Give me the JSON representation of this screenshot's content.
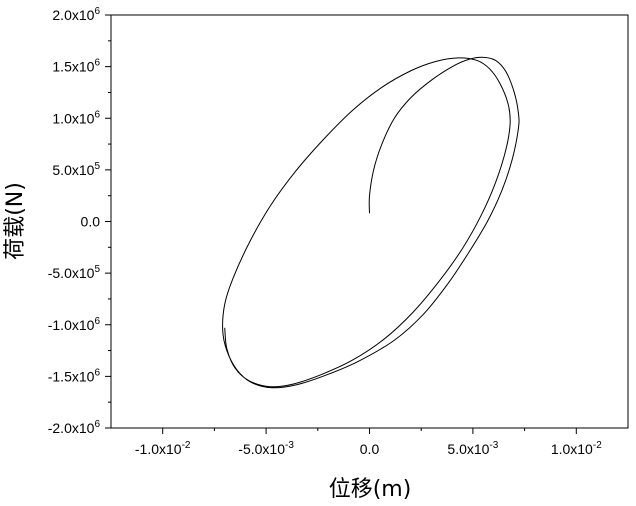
{
  "chart_data": {
    "type": "line",
    "xlabel": "位移(m)",
    "ylabel": "荷载(N)",
    "xlim": [
      -0.0125,
      0.0125
    ],
    "ylim": [
      -2000000,
      2000000
    ],
    "grid": false,
    "x_ticks": [
      {
        "value": -0.01,
        "mantissa": "-1.0x10",
        "exp": "-2"
      },
      {
        "value": -0.005,
        "mantissa": "-5.0x10",
        "exp": "-3"
      },
      {
        "value": 0,
        "mantissa": "0.0",
        "exp": ""
      },
      {
        "value": 0.005,
        "mantissa": "5.0x10",
        "exp": "-3"
      },
      {
        "value": 0.01,
        "mantissa": "1.0x10",
        "exp": "-2"
      }
    ],
    "y_ticks": [
      {
        "value": 2000000,
        "mantissa": "2.0x10",
        "exp": "6"
      },
      {
        "value": 1500000,
        "mantissa": "1.5x10",
        "exp": "6"
      },
      {
        "value": 1000000,
        "mantissa": "1.0x10",
        "exp": "6"
      },
      {
        "value": 500000,
        "mantissa": "5.0x10",
        "exp": "5"
      },
      {
        "value": 0,
        "mantissa": "0.0",
        "exp": ""
      },
      {
        "value": -500000,
        "mantissa": "-5.0x10",
        "exp": "5"
      },
      {
        "value": -1000000,
        "mantissa": "-1.0x10",
        "exp": "6"
      },
      {
        "value": -1500000,
        "mantissa": "-1.5x10",
        "exp": "6"
      },
      {
        "value": -2000000,
        "mantissa": "-2.0x10",
        "exp": "6"
      }
    ],
    "series": [
      {
        "color": "#000000",
        "points": [
          [
            0.0,
            80000
          ],
          [
            0.0,
            250000
          ],
          [
            0.0002,
            500000
          ],
          [
            0.0006,
            750000
          ],
          [
            0.0012,
            1000000
          ],
          [
            0.002,
            1200000
          ],
          [
            0.003,
            1370000
          ],
          [
            0.004,
            1500000
          ],
          [
            0.0048,
            1570000
          ],
          [
            0.0055,
            1590000
          ],
          [
            0.0061,
            1560000
          ],
          [
            0.0066,
            1450000
          ],
          [
            0.007,
            1250000
          ],
          [
            0.0072,
            1050000
          ],
          [
            0.0072,
            900000
          ],
          [
            0.0069,
            600000
          ],
          [
            0.0064,
            300000
          ],
          [
            0.0057,
            0
          ],
          [
            0.0048,
            -300000
          ],
          [
            0.0038,
            -600000
          ],
          [
            0.0026,
            -900000
          ],
          [
            0.0012,
            -1150000
          ],
          [
            -0.0005,
            -1350000
          ],
          [
            -0.002,
            -1480000
          ],
          [
            -0.0035,
            -1580000
          ],
          [
            -0.0047,
            -1610000
          ],
          [
            -0.0057,
            -1560000
          ],
          [
            -0.0064,
            -1440000
          ],
          [
            -0.0069,
            -1250000
          ],
          [
            -0.0071,
            -1050000
          ],
          [
            -0.007,
            -800000
          ],
          [
            -0.0066,
            -550000
          ],
          [
            -0.0058,
            -200000
          ],
          [
            -0.0048,
            150000
          ],
          [
            -0.0036,
            480000
          ],
          [
            -0.0022,
            800000
          ],
          [
            -0.0008,
            1080000
          ],
          [
            0.0006,
            1300000
          ],
          [
            0.002,
            1460000
          ],
          [
            0.0032,
            1550000
          ],
          [
            0.0043,
            1585000
          ],
          [
            0.0052,
            1560000
          ],
          [
            0.0058,
            1480000
          ],
          [
            0.0063,
            1340000
          ],
          [
            0.0067,
            1140000
          ],
          [
            0.0068,
            950000
          ],
          [
            0.0066,
            700000
          ],
          [
            0.0061,
            380000
          ],
          [
            0.0054,
            60000
          ],
          [
            0.0045,
            -260000
          ],
          [
            0.0034,
            -570000
          ],
          [
            0.0021,
            -880000
          ],
          [
            0.0007,
            -1140000
          ],
          [
            -0.0008,
            -1340000
          ],
          [
            -0.0023,
            -1480000
          ],
          [
            -0.0037,
            -1575000
          ],
          [
            -0.0048,
            -1600000
          ],
          [
            -0.0058,
            -1545000
          ],
          [
            -0.0065,
            -1420000
          ],
          [
            -0.0069,
            -1230000
          ],
          [
            -0.007,
            -1030000
          ]
        ]
      }
    ]
  }
}
